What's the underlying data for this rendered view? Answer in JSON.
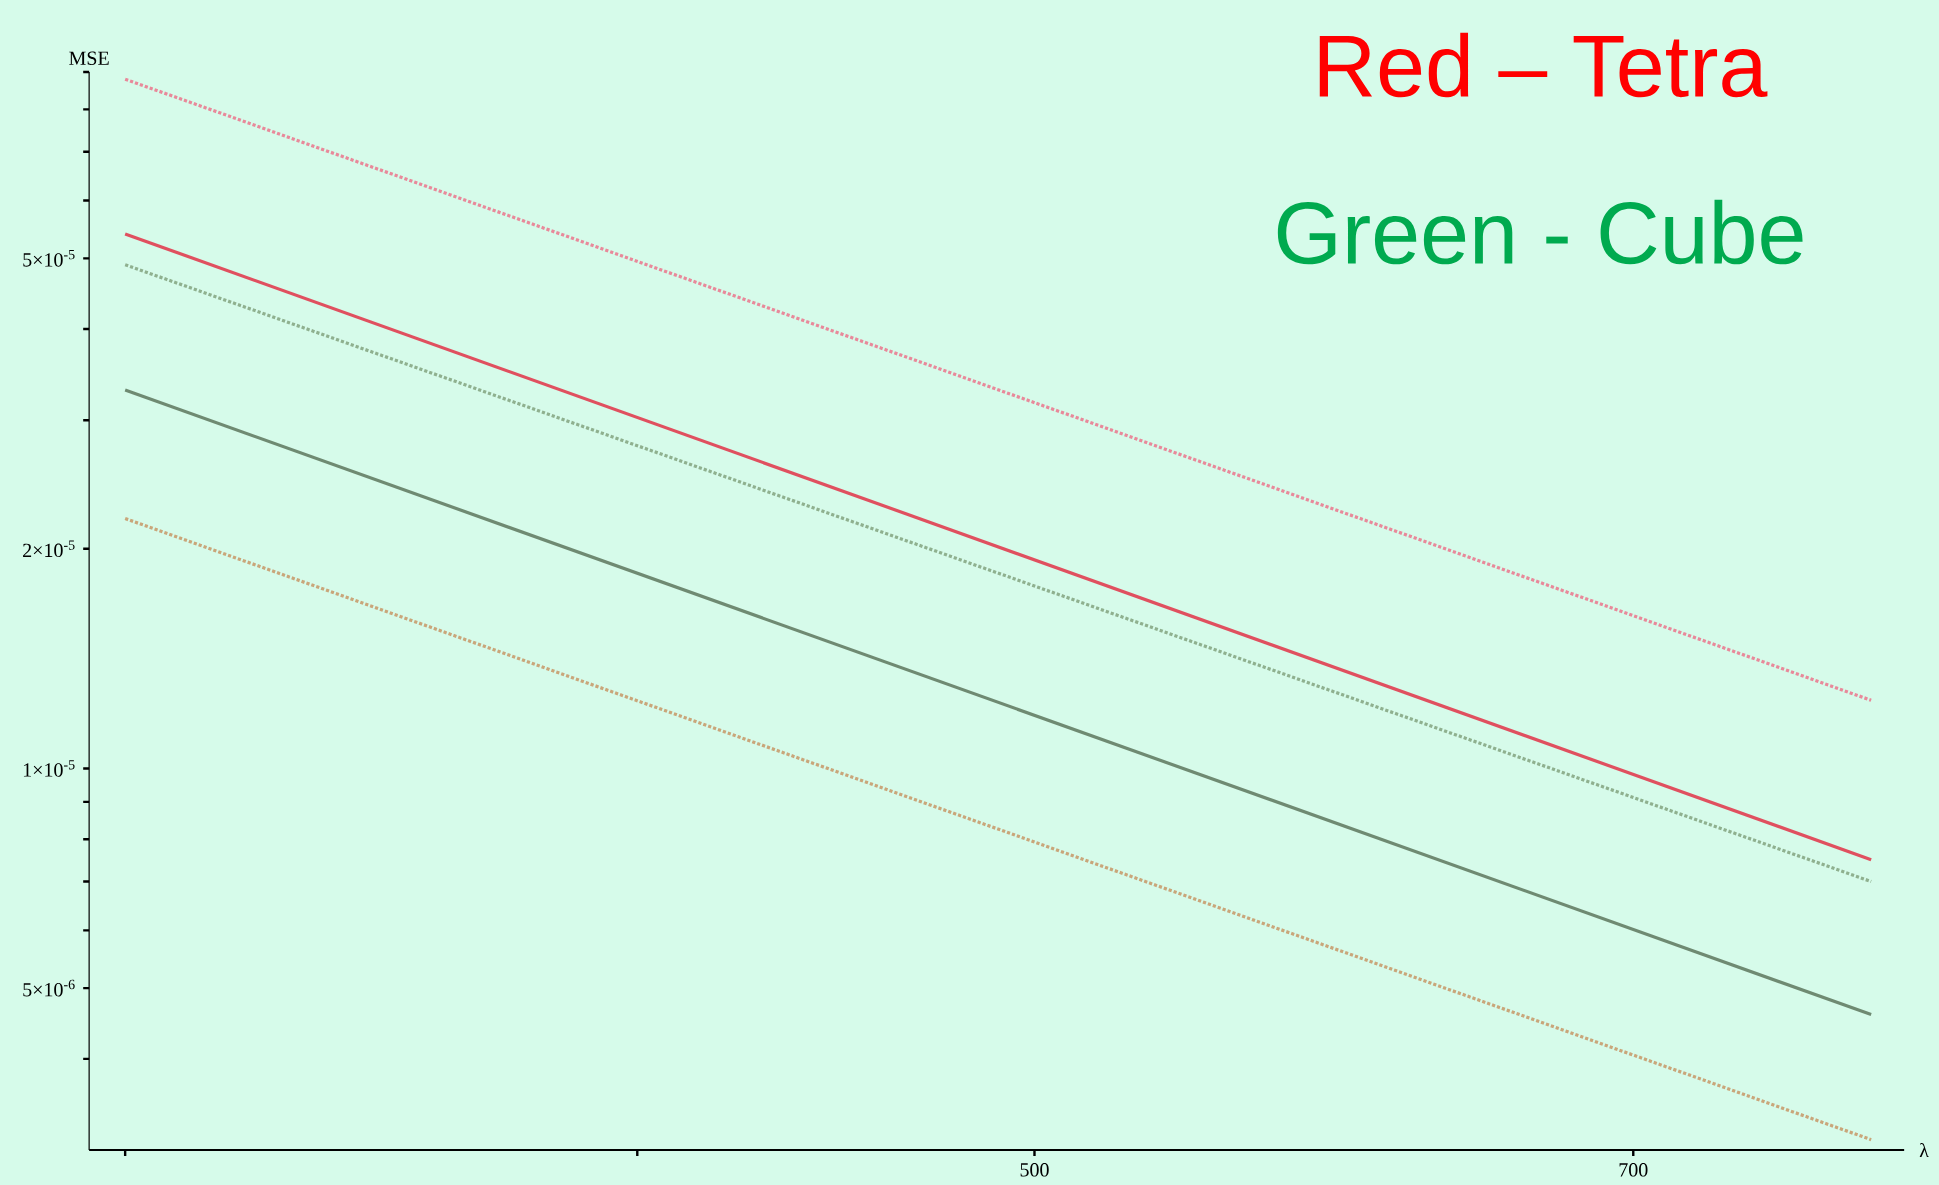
{
  "chart_data": {
    "type": "line",
    "xlabel": "λ",
    "ylabel": "MSE",
    "log": "xy",
    "xlim": [
      294,
      815
    ],
    "ylim": [
      3e-06,
      9e-05
    ],
    "xticks": [
      {
        "value": 300,
        "label": null
      },
      {
        "value": 400,
        "label": null
      },
      500,
      700
    ],
    "yticks": [
      {
        "value": 4e-06,
        "label": null
      },
      {
        "value": 5e-06,
        "label": "5×10$^{-6}$"
      },
      {
        "value": 6e-06,
        "label": null
      },
      {
        "value": 7e-06,
        "label": null
      },
      {
        "value": 8e-06,
        "label": null
      },
      {
        "value": 9e-06,
        "label": null
      },
      {
        "value": 1e-05,
        "label": "1×10$^{-5}$"
      },
      {
        "value": 2e-05,
        "label": "2×10$^{-5}$"
      },
      {
        "value": 3e-05,
        "label": null
      },
      {
        "value": 4e-05,
        "label": null
      },
      {
        "value": 5e-05,
        "label": "5×10$^{-5}$"
      },
      {
        "value": 6e-05,
        "label": null
      },
      {
        "value": 7e-05,
        "label": null
      },
      {
        "value": 8e-05,
        "label": null
      },
      {
        "value": 9e-05,
        "label": null
      }
    ],
    "x": [
      300,
      800
    ],
    "series": [
      {
        "color": "#e8899a",
        "line_style": "dotted",
        "values": [
          8.8e-05,
          1.24e-05
        ]
      },
      {
        "color": "#e0505f",
        "line_style": "solid",
        "values": [
          5.4e-05,
          7.5e-06
        ]
      },
      {
        "color": "#8fb08f",
        "line_style": "dotted",
        "values": [
          4.9e-05,
          7e-06
        ]
      },
      {
        "color": "#6f8a72",
        "line_style": "solid",
        "values": [
          3.3e-05,
          4.6e-06
        ]
      },
      {
        "color": "#c9a67a",
        "line_style": "dotted",
        "values": [
          2.2e-05,
          3.1e-06
        ]
      }
    ],
    "annotations": [
      "Red – Tetra",
      "Green - Cube"
    ]
  }
}
